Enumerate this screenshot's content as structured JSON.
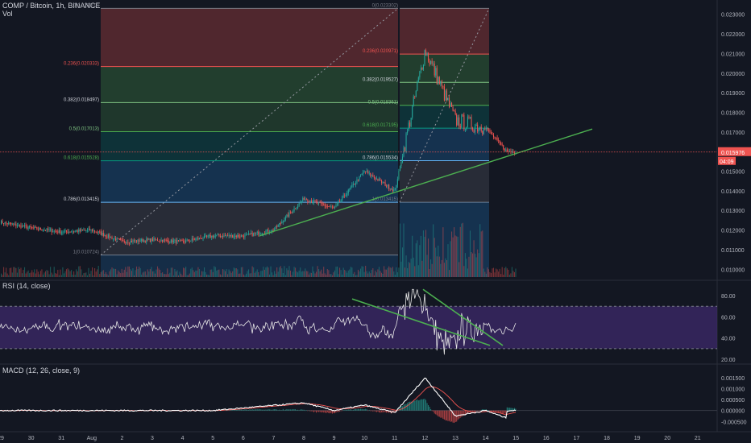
{
  "header": {
    "symbol": "COMP / Bitcoin, 1h, BINANCE",
    "volume_label": "Vol",
    "rsi_label": "RSI (14, close)",
    "macd_label": "MACD (12, 26, close, 9)"
  },
  "colors": {
    "background": "#131722",
    "up": "#26a69a",
    "down": "#ef5350",
    "trendline": "#4caf50",
    "rsi_line": "#e6e6e6",
    "rsi_band": "#3d2a6b",
    "macd_line": "#ffffff",
    "signal_line": "#ef5350",
    "price_tag": "#ef5350"
  },
  "price_axis": {
    "ticks": [
      "0.023000",
      "0.022000",
      "0.021000",
      "0.020000",
      "0.019000",
      "0.018000",
      "0.017000",
      "0.016000",
      "0.015000",
      "0.014000",
      "0.013000",
      "0.012000",
      "0.011000",
      "0.010000"
    ],
    "current_price": "0.015976",
    "countdown": "04:09"
  },
  "time_axis": {
    "labels": [
      "29",
      "30",
      "31",
      "Aug",
      "2",
      "3",
      "4",
      "5",
      "6",
      "7",
      "8",
      "9",
      "10",
      "11",
      "12",
      "13",
      "14",
      "15",
      "16",
      "17",
      "18",
      "19",
      "20",
      "21"
    ]
  },
  "fib_left": {
    "levels": [
      {
        "label": "0(0.023302)",
        "value": 0.023302
      },
      {
        "label": "0.236(0.020333)",
        "value": 0.020333
      },
      {
        "label": "0.382(0.018497)",
        "value": 0.018497
      },
      {
        "label": "0.5(0.017013)",
        "value": 0.017013
      },
      {
        "label": "0.618(0.015528)",
        "value": 0.015528
      },
      {
        "label": "0.786(0.013415)",
        "value": 0.013415
      },
      {
        "label": "1(0.010724)",
        "value": 0.010724
      }
    ]
  },
  "fib_right": {
    "levels": [
      {
        "label": "0(0.023302)",
        "value": 0.023302
      },
      {
        "label": "0.236(0.020971)",
        "value": 0.020971
      },
      {
        "label": "0.382(0.019527)",
        "value": 0.019527
      },
      {
        "label": "0.5(0.018361)",
        "value": 0.018361
      },
      {
        "label": "0.618(0.017195)",
        "value": 0.017195
      },
      {
        "label": "0.786(0.015534)",
        "value": 0.015534
      },
      {
        "label": "1(0.013415)",
        "value": 0.013415
      }
    ]
  },
  "rsi_axis": {
    "ticks": [
      "80.00",
      "60.00",
      "40.00",
      "20.00"
    ]
  },
  "macd_axis": {
    "ticks": [
      "0.001500",
      "0.001000",
      "0.000500",
      "0.000000",
      "-0.000500"
    ]
  },
  "chart_data": {
    "type": "candlestick",
    "price_path": [
      {
        "date": "Jul 29",
        "price": 0.0124
      },
      {
        "date": "Jul 30",
        "price": 0.0121
      },
      {
        "date": "Jul 31",
        "price": 0.0119
      },
      {
        "date": "Aug 1",
        "price": 0.012
      },
      {
        "date": "Aug 2",
        "price": 0.0114
      },
      {
        "date": "Aug 3",
        "price": 0.0115
      },
      {
        "date": "Aug 4",
        "price": 0.0114
      },
      {
        "date": "Aug 5",
        "price": 0.0117
      },
      {
        "date": "Aug 6",
        "price": 0.0117
      },
      {
        "date": "Aug 7",
        "price": 0.012
      },
      {
        "date": "Aug 8",
        "price": 0.0136
      },
      {
        "date": "Aug 9",
        "price": 0.0131
      },
      {
        "date": "Aug 10",
        "price": 0.015
      },
      {
        "date": "Aug 11",
        "price": 0.014
      },
      {
        "date": "Aug 12",
        "price": 0.0212
      },
      {
        "date": "Aug 13",
        "price": 0.0176
      },
      {
        "date": "Aug 14",
        "price": 0.0172
      },
      {
        "date": "Aug 14.7",
        "price": 0.016
      }
    ],
    "price_range": [
      0.0096,
      0.0234
    ],
    "rsi_range": [
      20,
      90
    ],
    "rsi_bands": [
      70,
      30
    ],
    "macd_range": [
      -0.0006,
      0.0019
    ],
    "macd_path": [
      {
        "date": "Jul 29",
        "macd": 0.0
      },
      {
        "date": "Aug 5",
        "macd": 0.0
      },
      {
        "date": "Aug 8",
        "macd": 0.00035
      },
      {
        "date": "Aug 9",
        "macd": 0.0
      },
      {
        "date": "Aug 10",
        "macd": 0.00025
      },
      {
        "date": "Aug 11",
        "macd": -0.0001
      },
      {
        "date": "Aug 12",
        "macd": 0.0015
      },
      {
        "date": "Aug 13",
        "macd": -0.00025
      },
      {
        "date": "Aug 14",
        "macd": 0.0
      },
      {
        "date": "Aug 14.7",
        "macd": -0.00035
      }
    ]
  }
}
